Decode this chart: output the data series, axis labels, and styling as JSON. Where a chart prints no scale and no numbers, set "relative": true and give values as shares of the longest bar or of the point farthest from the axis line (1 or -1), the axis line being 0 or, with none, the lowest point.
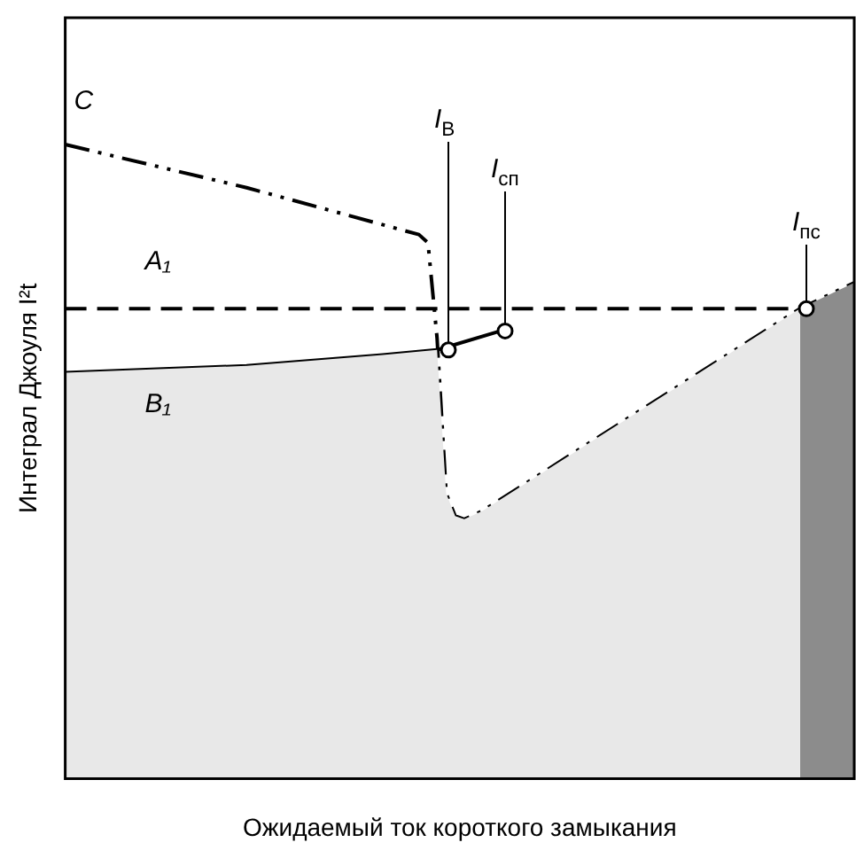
{
  "chart_data": {
    "type": "line",
    "relative": true,
    "xlabel": "Ожидаемый ток короткого замыкания",
    "ylabel": "Интеграл Джоуля I²t",
    "categories": [
      null,
      null,
      null,
      null,
      null,
      null,
      null,
      null,
      null,
      null,
      null,
      null,
      null,
      null,
      null,
      null,
      null,
      null,
      null,
      null,
      null,
      null,
      null,
      null,
      null,
      null,
      null,
      null,
      null,
      null,
      null,
      null,
      null,
      null,
      null,
      null,
      null,
      null,
      null,
      null,
      null,
      null,
      null,
      null,
      null,
      null,
      null,
      null,
      null,
      null,
      null,
      null,
      null,
      null,
      null,
      null,
      null,
      null,
      null,
      null,
      null,
      null,
      null,
      null,
      null,
      null,
      null,
      null,
      null,
      null,
      null,
      null,
      null,
      null,
      null,
      null,
      null,
      null,
      null,
      null,
      null,
      null,
      null,
      null,
      null,
      null,
      null,
      null
    ],
    "grid": false,
    "legend": false,
    "series": [
      {
        "type": "area",
        "color": "#e8e8e8",
        "values": [
          0.64,
          null,
          null,
          null,
          null,
          null,
          null,
          null,
          null,
          null,
          null,
          null,
          null,
          null,
          null,
          null,
          null,
          null,
          null,
          null,
          0.651,
          null,
          null,
          null,
          null,
          null,
          null,
          null,
          null,
          null,
          null,
          null,
          null,
          null,
          null,
          0.668,
          null,
          null,
          null,
          null,
          null,
          0.676,
          0.45,
          0.414,
          0.409,
          null,
          0.422,
          null,
          null,
          null,
          null,
          null,
          null,
          null,
          null,
          null,
          null,
          null,
          null,
          null,
          null,
          null,
          null,
          null,
          null,
          null,
          null,
          null,
          null,
          null,
          null,
          null,
          null,
          null,
          null,
          null,
          null,
          null,
          null,
          null,
          null,
          0.741,
          null,
          null,
          null,
          null,
          null,
          null
        ]
      },
      {
        "type": "area",
        "color": "#8c8c8c",
        "values": [
          null,
          null,
          null,
          null,
          null,
          null,
          null,
          null,
          null,
          null,
          null,
          null,
          null,
          null,
          null,
          null,
          null,
          null,
          null,
          null,
          null,
          null,
          null,
          null,
          null,
          null,
          null,
          null,
          null,
          null,
          null,
          null,
          null,
          null,
          null,
          null,
          null,
          null,
          null,
          null,
          null,
          null,
          null,
          null,
          null,
          null,
          null,
          null,
          null,
          null,
          null,
          null,
          null,
          null,
          null,
          null,
          null,
          null,
          null,
          null,
          null,
          null,
          null,
          null,
          null,
          null,
          null,
          null,
          null,
          null,
          null,
          null,
          null,
          null,
          null,
          null,
          null,
          null,
          null,
          null,
          null,
          0.741,
          null,
          null,
          null,
          null,
          null,
          0.782
        ]
      },
      {
        "type": "line",
        "name": "A₁",
        "color": "#000000",
        "line_style": "dashed",
        "values": [
          0.741,
          null,
          null,
          null,
          null,
          null,
          null,
          null,
          null,
          null,
          null,
          null,
          null,
          null,
          null,
          null,
          null,
          null,
          null,
          null,
          null,
          null,
          null,
          null,
          null,
          null,
          null,
          null,
          null,
          null,
          null,
          null,
          null,
          null,
          null,
          null,
          null,
          null,
          null,
          null,
          null,
          null,
          null,
          null,
          null,
          null,
          null,
          null,
          null,
          null,
          null,
          null,
          null,
          null,
          null,
          null,
          null,
          null,
          null,
          null,
          null,
          null,
          null,
          null,
          null,
          null,
          null,
          null,
          null,
          null,
          null,
          null,
          null,
          null,
          null,
          null,
          null,
          null,
          null,
          null,
          null,
          0.741,
          null,
          null,
          null,
          null,
          null,
          null
        ]
      },
      {
        "type": "line",
        "name": "B₁",
        "color": "#000000",
        "line_style": "solid",
        "values": [
          0.64,
          null,
          null,
          null,
          null,
          null,
          null,
          null,
          null,
          null,
          null,
          null,
          null,
          null,
          null,
          null,
          null,
          null,
          null,
          null,
          0.651,
          null,
          null,
          null,
          null,
          null,
          null,
          null,
          null,
          null,
          null,
          null,
          null,
          null,
          null,
          0.668,
          null,
          null,
          null,
          null,
          null,
          0.676,
          null,
          null,
          null,
          null,
          null,
          null,
          0.706,
          null,
          null,
          null,
          null,
          null,
          null,
          null,
          null,
          null,
          null,
          null,
          null,
          null,
          null,
          null,
          null,
          null,
          null,
          null,
          null,
          null,
          null,
          null,
          null,
          null,
          null,
          null,
          null,
          null,
          null,
          null,
          null,
          null,
          null,
          null,
          null,
          null,
          null,
          null
        ]
      },
      {
        "type": "line",
        "name": "C",
        "color": "#000000",
        "line_style": "dashdot",
        "values": [
          1,
          null,
          null,
          null,
          null,
          null,
          null,
          null,
          null,
          null,
          null,
          null,
          null,
          null,
          null,
          null,
          null,
          null,
          null,
          null,
          0.932,
          null,
          null,
          null,
          null,
          null,
          null,
          null,
          null,
          null,
          null,
          null,
          null,
          null,
          null,
          null,
          null,
          null,
          null,
          0.858,
          0.845,
          0.695,
          0.45,
          0.414,
          0.409,
          null,
          0.422,
          null,
          null,
          null,
          null,
          null,
          null,
          null,
          null,
          null,
          null,
          null,
          null,
          null,
          null,
          null,
          null,
          null,
          null,
          null,
          null,
          null,
          null,
          null,
          null,
          null,
          null,
          null,
          null,
          null,
          null,
          null,
          null,
          null,
          null,
          0.741,
          null,
          null,
          null,
          null,
          null,
          0.782
        ]
      }
    ],
    "annotations": [
      {
        "text": "I$_{В}$",
        "y": 0.676
      },
      {
        "text": "I$_{сп}$",
        "y": 0.706
      },
      {
        "text": "I$_{пс}$",
        "y": 0.741
      }
    ]
  }
}
